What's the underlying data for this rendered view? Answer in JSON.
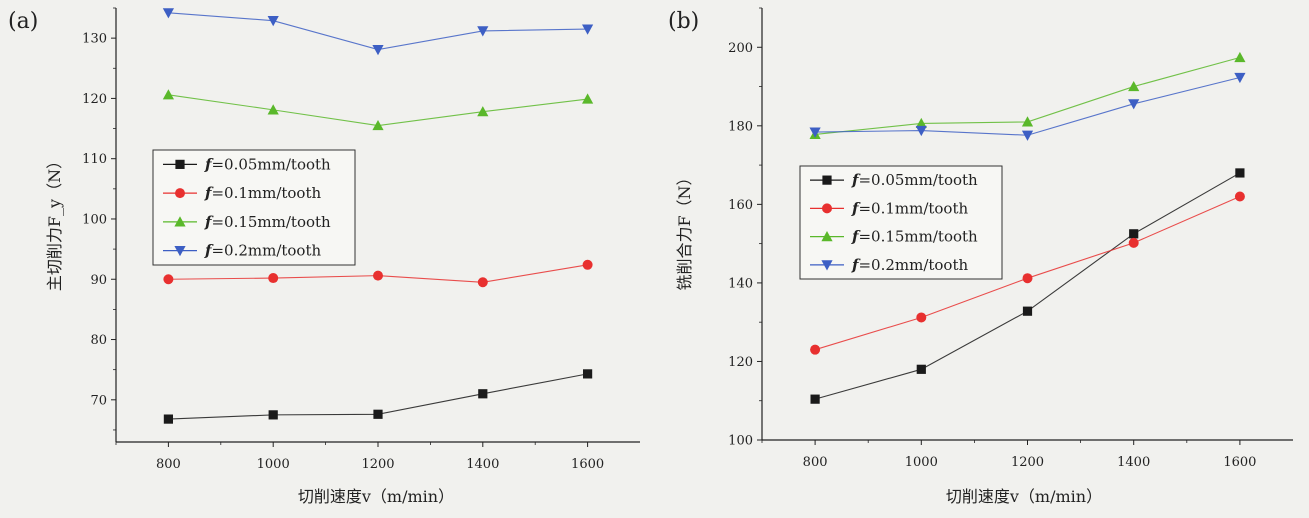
{
  "chart_data": [
    {
      "type": "line",
      "panel_label": "(a)",
      "xlabel": "切削速度v（m/min）",
      "ylabel": "主切削力F_y（N）",
      "x": [
        800,
        1000,
        1200,
        1400,
        1600
      ],
      "xticks": [
        "800",
        "1000",
        "1200",
        "1400",
        "1600"
      ],
      "xlim": [
        700,
        1700
      ],
      "ylim": [
        63,
        135
      ],
      "yticks": [
        70,
        80,
        90,
        100,
        110,
        120,
        130
      ],
      "grid": false,
      "legend_position": "center-left",
      "series": [
        {
          "name": "f=0.05mm/tooth",
          "f": "f",
          "rest": "=0.05mm/tooth",
          "marker": "square",
          "color": "#1a1a1a",
          "values": [
            66.8,
            67.5,
            67.6,
            71.0,
            74.3
          ]
        },
        {
          "name": "f=0.1mm/tooth",
          "f": "f",
          "rest": "=0.1mm/tooth",
          "marker": "circle",
          "color": "#e8302f",
          "values": [
            90.0,
            90.2,
            90.6,
            89.5,
            92.4
          ]
        },
        {
          "name": "f=0.15mm/tooth",
          "f": "f",
          "rest": "=0.15mm/tooth",
          "marker": "triangle-up",
          "color": "#5ab82a",
          "values": [
            120.6,
            118.1,
            115.5,
            117.8,
            119.9
          ]
        },
        {
          "name": "f=0.2mm/tooth",
          "f": "f",
          "rest": "=0.2mm/tooth",
          "marker": "triangle-down",
          "color": "#3d5fc4",
          "values": [
            134.2,
            132.9,
            128.1,
            131.2,
            131.5
          ]
        }
      ]
    },
    {
      "type": "line",
      "panel_label": "(b)",
      "xlabel": "切削速度v（m/min）",
      "ylabel": "铣削合力F（N）",
      "x": [
        800,
        1000,
        1200,
        1400,
        1600
      ],
      "xticks": [
        "800",
        "1000",
        "1200",
        "1400",
        "1600"
      ],
      "xlim": [
        700,
        1700
      ],
      "ylim": [
        100,
        210
      ],
      "yticks": [
        100,
        120,
        140,
        160,
        180,
        200
      ],
      "grid": false,
      "legend_position": "center-left",
      "series": [
        {
          "name": "f=0.05mm/tooth",
          "f": "f",
          "rest": "=0.05mm/tooth",
          "marker": "square",
          "color": "#1a1a1a",
          "values": [
            110.4,
            118.0,
            132.8,
            152.5,
            168.0
          ]
        },
        {
          "name": "f=0.1mm/tooth",
          "f": "f",
          "rest": "=0.1mm/tooth",
          "marker": "circle",
          "color": "#e8302f",
          "values": [
            123.0,
            131.2,
            141.2,
            150.2,
            162.0
          ]
        },
        {
          "name": "f=0.15mm/tooth",
          "f": "f",
          "rest": "=0.15mm/tooth",
          "marker": "triangle-up",
          "color": "#5ab82a",
          "values": [
            177.8,
            180.6,
            181.0,
            190.0,
            197.4
          ]
        },
        {
          "name": "f=0.2mm/tooth",
          "f": "f",
          "rest": "=0.2mm/tooth",
          "marker": "triangle-down",
          "color": "#3d5fc4",
          "values": [
            178.4,
            178.8,
            177.6,
            185.6,
            192.3
          ]
        }
      ]
    }
  ]
}
